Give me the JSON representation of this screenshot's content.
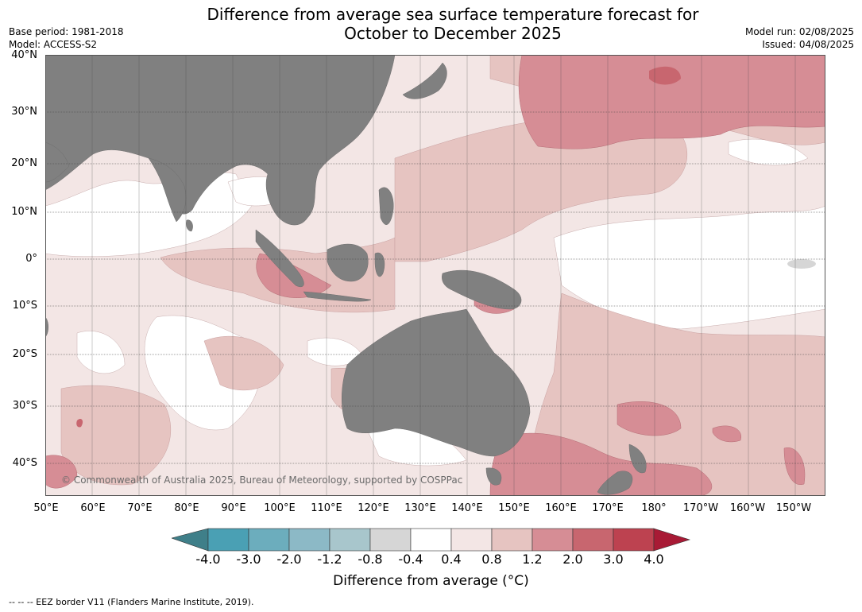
{
  "title_line1": "Difference from average sea surface temperature forecast for",
  "title_line2": "October to December 2025",
  "base_period": "Base period: 1981-2018",
  "model": "Model: ACCESS-S2",
  "model_run": "Model run: 02/08/2025",
  "issued": "Issued: 04/08/2025",
  "copyright": "© Commonwealth of Australia 2025, Bureau of Meteorology, supported by COSPPac",
  "latitude_labels": [
    "40°N",
    "30°N",
    "20°N",
    "10°N",
    "0°",
    "10°S",
    "20°S",
    "30°S",
    "40°S"
  ],
  "longitude_labels": [
    "50°E",
    "60°E",
    "70°E",
    "80°E",
    "90°E",
    "100°E",
    "110°E",
    "120°E",
    "130°E",
    "140°E",
    "150°E",
    "160°E",
    "170°E",
    "180°",
    "170°W",
    "160°W",
    "150°W"
  ],
  "colorbar": {
    "title": "Difference from average (°C)",
    "tick_labels": [
      "-4.0",
      "-3.0",
      "-2.0",
      "-1.2",
      "-0.8",
      "-0.4",
      "0.4",
      "0.8",
      "1.2",
      "2.0",
      "3.0",
      "4.0"
    ],
    "colors": [
      "#3f7f89",
      "#4aa0b4",
      "#6cadbd",
      "#8cb9c6",
      "#a8c6cc",
      "#d6d6d6",
      "#ffffff",
      "#f3e6e5",
      "#e6c4c1",
      "#d68d95",
      "#c8666f",
      "#bd4250",
      "#a81a35"
    ]
  },
  "map_colors": {
    "land": "#808080",
    "anomaly_0_4_0_8": "#f3e6e5",
    "anomaly_0_8_1_2": "#e6c4c1",
    "anomaly_1_2_2_0": "#d68d95",
    "anomaly_2_0_3_0": "#c8666f",
    "anomaly_neg": "#d6d6d6"
  },
  "footer": "--  --  -- EEZ border V11 (Flanders Marine Institute, 2019)."
}
